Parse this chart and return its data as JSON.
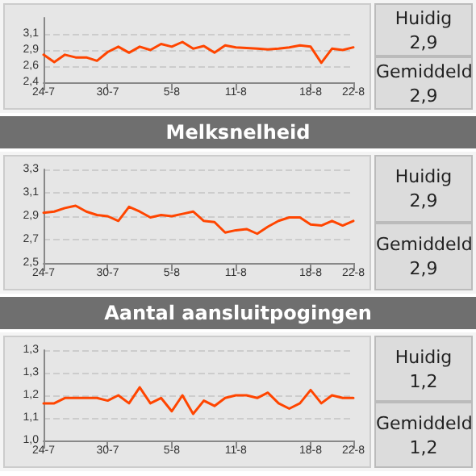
{
  "chart_data": [
    {
      "type": "line",
      "categories": [
        "24-7",
        null,
        null,
        null,
        null,
        null,
        "30-7",
        null,
        null,
        null,
        null,
        null,
        "5-8",
        null,
        null,
        null,
        null,
        null,
        "11-8",
        null,
        null,
        null,
        null,
        null,
        null,
        "18-8",
        null,
        null,
        null,
        "22-8"
      ],
      "series": [
        {
          "color": "#ff4500",
          "values": [
            2.81,
            2.7,
            2.81,
            2.77,
            2.77,
            2.72,
            2.85,
            2.93,
            2.84,
            2.93,
            2.88,
            2.97,
            2.93,
            3.0,
            2.9,
            2.94,
            2.84,
            2.95,
            2.92,
            2.91,
            2.9,
            2.89,
            2.9,
            2.92,
            2.95,
            2.93,
            2.69,
            2.9,
            2.88,
            2.92
          ]
        }
      ],
      "ylim": [
        2.4,
        3.36
      ],
      "yticks": [
        {
          "value": 2.4,
          "label": "2,4"
        },
        {
          "value": 2.64,
          "label": "2,6"
        },
        {
          "value": 2.88,
          "label": "2,9"
        },
        {
          "value": 3.12,
          "label": "3,1"
        }
      ],
      "grid": "y",
      "marker": "none",
      "line_style": "solid",
      "annotations": [
        "Huidig",
        "2,9",
        "Gemiddeld",
        "2,9"
      ]
    },
    {
      "type": "line",
      "title": "Melksnelheid",
      "categories": [
        "24-7",
        null,
        null,
        null,
        null,
        null,
        "30-7",
        null,
        null,
        null,
        null,
        null,
        "5-8",
        null,
        null,
        null,
        null,
        null,
        "11-8",
        null,
        null,
        null,
        null,
        null,
        null,
        "18-8",
        null,
        null,
        null,
        "22-8"
      ],
      "series": [
        {
          "color": "#ff4500",
          "values": [
            2.93,
            2.94,
            2.97,
            2.99,
            2.94,
            2.91,
            2.9,
            2.86,
            2.98,
            2.94,
            2.89,
            2.91,
            2.9,
            2.92,
            2.94,
            2.86,
            2.85,
            2.76,
            2.78,
            2.79,
            2.75,
            2.81,
            2.86,
            2.89,
            2.89,
            2.83,
            2.82,
            2.86,
            2.82,
            2.86
          ]
        }
      ],
      "ylim": [
        2.5,
        3.3
      ],
      "yticks": [
        {
          "value": 2.5,
          "label": "2,5"
        },
        {
          "value": 2.7,
          "label": "2,7"
        },
        {
          "value": 2.9,
          "label": "2,9"
        },
        {
          "value": 3.1,
          "label": "3,1"
        },
        {
          "value": 3.3,
          "label": "3,3"
        }
      ],
      "grid": "y",
      "marker": "none",
      "line_style": "solid",
      "annotations": [
        "Huidig",
        "2,9",
        "Gemiddeld",
        "2,9"
      ]
    },
    {
      "type": "line",
      "title": "Aantal aansluitpogingen",
      "categories": [
        "24-7",
        null,
        null,
        null,
        null,
        null,
        "30-7",
        null,
        null,
        null,
        null,
        null,
        "5-8",
        null,
        null,
        null,
        null,
        null,
        "11-8",
        null,
        null,
        null,
        null,
        null,
        null,
        "18-8",
        null,
        null,
        null,
        "22-8"
      ],
      "series": [
        {
          "color": "#ff4500",
          "values": [
            1.14,
            1.14,
            1.16,
            1.16,
            1.16,
            1.16,
            1.15,
            1.17,
            1.14,
            1.2,
            1.14,
            1.16,
            1.11,
            1.17,
            1.1,
            1.15,
            1.13,
            1.16,
            1.17,
            1.17,
            1.16,
            1.18,
            1.14,
            1.12,
            1.14,
            1.19,
            1.14,
            1.17,
            1.16,
            1.16
          ]
        }
      ],
      "ylim": [
        1.0,
        1.34
      ],
      "yticks": [
        {
          "value": 1.0,
          "label": "1,0"
        },
        {
          "value": 1.085,
          "label": "1,1"
        },
        {
          "value": 1.17,
          "label": "1,2"
        },
        {
          "value": 1.255,
          "label": "1,3"
        },
        {
          "value": 1.34,
          "label": "1,3"
        }
      ],
      "grid": "y",
      "marker": "none",
      "line_style": "solid",
      "annotations": [
        "Huidig",
        "1,2",
        "Gemiddeld",
        "1,2"
      ]
    }
  ]
}
